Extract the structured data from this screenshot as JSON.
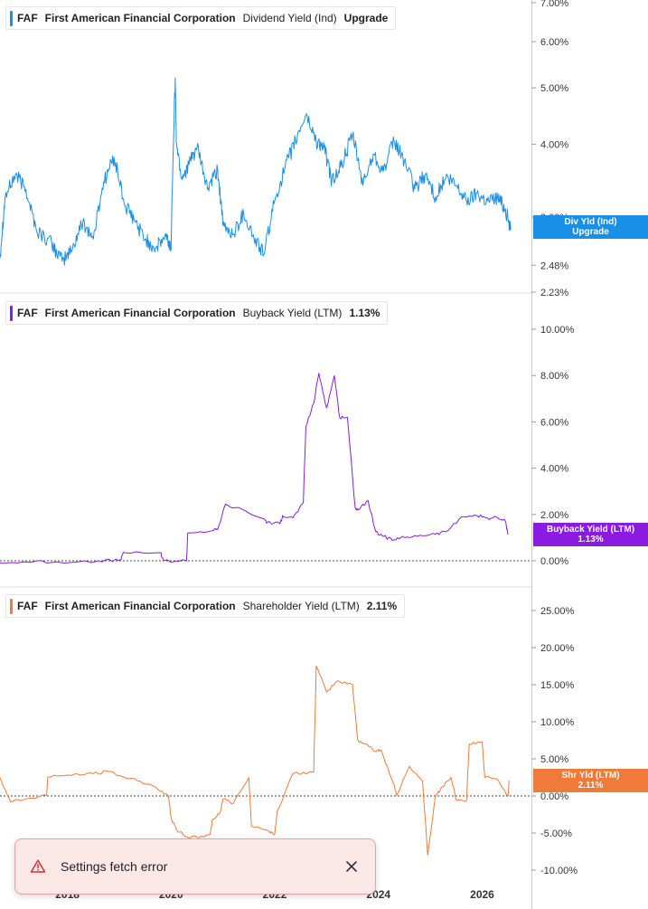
{
  "chart_data": [
    {
      "type": "line",
      "series": [
        {
          "name": "Dividend Yield (Ind)",
          "color": "#1a8fe8",
          "x": [
            2016.7,
            2016.8,
            2017.0,
            2017.2,
            2017.4,
            2017.7,
            2017.9,
            2018.1,
            2018.3,
            2018.5,
            2018.7,
            2018.9,
            2019.1,
            2019.3,
            2019.5,
            2019.7,
            2019.9,
            2020.0,
            2020.08,
            2020.1,
            2020.2,
            2020.35,
            2020.5,
            2020.7,
            2020.9,
            2021.0,
            2021.2,
            2021.4,
            2021.6,
            2021.8,
            2022.0,
            2022.2,
            2022.4,
            2022.6,
            2022.8,
            2022.95,
            2023.1,
            2023.3,
            2023.5,
            2023.7,
            2023.9,
            2024.1,
            2024.3,
            2024.5,
            2024.7,
            2024.9,
            2025.1,
            2025.3,
            2025.5,
            2025.7,
            2025.9,
            2026.1,
            2026.3,
            2026.45,
            2026.55
          ],
          "y": [
            2.55,
            3.25,
            3.55,
            3.35,
            2.85,
            2.7,
            2.52,
            2.65,
            2.95,
            2.75,
            3.45,
            3.8,
            3.15,
            2.95,
            2.75,
            2.65,
            2.78,
            2.65,
            5.2,
            4.05,
            3.5,
            3.7,
            3.95,
            3.35,
            3.6,
            2.9,
            2.8,
            3.05,
            2.75,
            2.6,
            3.2,
            3.65,
            4.05,
            4.5,
            4.05,
            3.95,
            3.45,
            3.7,
            4.15,
            3.4,
            3.85,
            3.6,
            4.05,
            3.75,
            3.35,
            3.55,
            3.25,
            3.5,
            3.4,
            3.2,
            3.3,
            3.2,
            3.25,
            3.1,
            2.85
          ]
        }
      ],
      "ylim": [
        2.23,
        7.0
      ],
      "yscale": "log",
      "yticks": [
        "7.00%",
        "6.00%",
        "5.00%",
        "4.00%",
        "3.00%",
        "2.48%",
        "2.23%"
      ],
      "ytick_values": [
        7.0,
        6.0,
        5.0,
        4.0,
        3.0,
        2.48,
        2.23
      ],
      "end_tag": [
        "Div Yld (Ind)",
        "Upgrade"
      ]
    },
    {
      "type": "line",
      "series": [
        {
          "name": "Buyback Yield (LTM)",
          "color": "#8a1be0",
          "x": [
            2016.7,
            2017.2,
            2017.8,
            2018.6,
            2019.0,
            2019.1,
            2019.8,
            2019.85,
            2020.3,
            2020.32,
            2020.8,
            2020.9,
            2021.05,
            2021.8,
            2021.85,
            2022.1,
            2022.15,
            2022.35,
            2022.55,
            2022.6,
            2022.75,
            2022.85,
            2023.0,
            2023.15,
            2023.25,
            2023.4,
            2023.55,
            2023.6,
            2023.8,
            2023.95,
            2024.1,
            2024.3,
            2024.5,
            2024.8,
            2025.1,
            2025.3,
            2025.6,
            2025.9,
            2026.1,
            2026.3,
            2026.45,
            2026.5
          ],
          "y": [
            -0.1,
            -0.05,
            -0.05,
            0.0,
            0.0,
            0.35,
            0.35,
            0.0,
            0.0,
            1.2,
            1.3,
            1.35,
            2.45,
            1.8,
            1.65,
            1.6,
            1.95,
            1.85,
            2.5,
            5.8,
            6.8,
            8.1,
            6.6,
            8.0,
            6.2,
            6.2,
            2.3,
            2.2,
            2.6,
            1.25,
            1.05,
            0.9,
            1.0,
            1.1,
            1.15,
            1.25,
            1.9,
            1.95,
            1.85,
            1.85,
            1.7,
            1.13
          ]
        }
      ],
      "ylim": [
        0,
        10
      ],
      "yticks": [
        "10.00%",
        "8.00%",
        "6.00%",
        "4.00%",
        "2.00%",
        "0.00%"
      ],
      "ytick_values": [
        10,
        8,
        6,
        4,
        2,
        0
      ],
      "end_tag": [
        "Buyback Yield (LTM)",
        "1.13%"
      ]
    },
    {
      "type": "line",
      "series": [
        {
          "name": "Shareholder Yield (LTM)",
          "color": "#f07a3a",
          "x": [
            2016.7,
            2016.9,
            2017.2,
            2017.6,
            2017.62,
            2018.0,
            2018.5,
            2018.8,
            2019.1,
            2019.4,
            2019.7,
            2019.95,
            2020.0,
            2020.1,
            2020.3,
            2020.5,
            2020.75,
            2020.8,
            2020.95,
            2021.0,
            2021.2,
            2021.5,
            2021.55,
            2021.9,
            2022.0,
            2022.05,
            2022.35,
            2022.75,
            2022.8,
            2023.0,
            2023.2,
            2023.5,
            2023.6,
            2023.75,
            2023.95,
            2024.05,
            2024.3,
            2024.35,
            2024.6,
            2024.85,
            2024.95,
            2025.1,
            2025.2,
            2025.4,
            2025.5,
            2025.7,
            2025.75,
            2026.0,
            2026.05,
            2026.3,
            2026.5,
            2026.52
          ],
          "y": [
            2.5,
            -0.8,
            -0.4,
            0.1,
            2.5,
            2.8,
            3.0,
            3.3,
            2.5,
            2.0,
            1.2,
            0.0,
            -3.0,
            -4.5,
            -5.5,
            -5.6,
            -5.2,
            -3.2,
            -2.2,
            -0.4,
            -1.0,
            2.5,
            -4.0,
            -4.8,
            -5.1,
            -2.0,
            3.0,
            3.2,
            17.5,
            14.0,
            15.5,
            15.0,
            7.5,
            7.0,
            6.0,
            6.2,
            1.5,
            0.1,
            4.0,
            2.0,
            -8.0,
            0.0,
            1.0,
            2.5,
            -0.5,
            -0.6,
            7.0,
            7.3,
            2.5,
            2.2,
            0.0,
            2.11
          ]
        }
      ],
      "ylim": [
        -10,
        25
      ],
      "yticks": [
        "25.00%",
        "20.00%",
        "15.00%",
        "10.00%",
        "5.00%",
        "0.00%",
        "-5.00%",
        "-10.00%"
      ],
      "ytick_values": [
        25,
        20,
        15,
        10,
        5,
        0,
        -5,
        -10
      ],
      "end_tag": [
        "Shr Yld (LTM)",
        "2.11%"
      ]
    }
  ],
  "xaxis": {
    "ticks": [
      "2018",
      "2020",
      "2022",
      "2024",
      "2026"
    ],
    "tick_values": [
      2018,
      2020,
      2022,
      2024,
      2026
    ],
    "xlim": [
      2016.7,
      2026.95
    ]
  },
  "legends": [
    {
      "ticker": "FAF",
      "company": "First American Financial Corporation",
      "metric": "Dividend Yield (Ind)",
      "value": "Upgrade",
      "color": "#1a8fe8"
    },
    {
      "ticker": "FAF",
      "company": "First American Financial Corporation",
      "metric": "Buyback Yield (LTM)",
      "value": "1.13%",
      "color": "#8a1be0"
    },
    {
      "ticker": "FAF",
      "company": "First American Financial Corporation",
      "metric": "Shareholder Yield (LTM)",
      "value": "2.11%",
      "color": "#f07a3a"
    }
  ],
  "toast": {
    "message": "Settings fetch error",
    "icon": "warning-triangle-icon",
    "close_icon": "close-icon"
  }
}
